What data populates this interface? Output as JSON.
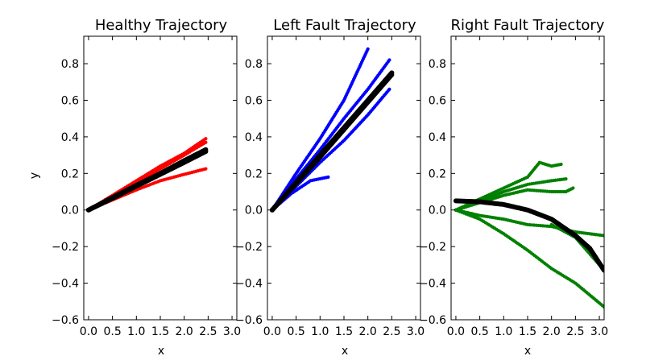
{
  "chart_data": [
    {
      "type": "scatter",
      "title": "Healthy Trajectory",
      "xlabel": "x",
      "ylabel": "y",
      "xlim": [
        -0.1,
        3.1
      ],
      "ylim": [
        -0.6,
        0.95
      ],
      "xticks": [
        "0.0",
        "0.5",
        "1.0",
        "1.5",
        "2.0",
        "2.5",
        "3.0"
      ],
      "yticks": [
        "−0.6",
        "−0.4",
        "−0.2",
        "0.0",
        "0.2",
        "0.4",
        "0.6",
        "0.8"
      ],
      "grid": false,
      "series": [
        {
          "color": "#ff0000",
          "points": [
            [
              0.0,
              0.0
            ],
            [
              0.5,
              0.08
            ],
            [
              1.0,
              0.16
            ],
            [
              1.5,
              0.24
            ],
            [
              2.0,
              0.31
            ],
            [
              2.45,
              0.39
            ]
          ]
        },
        {
          "color": "#ff0000",
          "points": [
            [
              0.0,
              0.0
            ],
            [
              0.5,
              0.075
            ],
            [
              1.0,
              0.15
            ],
            [
              1.5,
              0.225
            ],
            [
              2.0,
              0.3
            ],
            [
              2.45,
              0.37
            ]
          ]
        },
        {
          "color": "#ff0000",
          "points": [
            [
              0.0,
              0.0
            ],
            [
              0.5,
              0.055
            ],
            [
              1.0,
              0.11
            ],
            [
              1.5,
              0.16
            ],
            [
              2.0,
              0.195
            ],
            [
              2.45,
              0.225
            ]
          ]
        },
        {
          "color": "#000000",
          "points": [
            [
              0.0,
              0.0
            ],
            [
              0.5,
              0.068
            ],
            [
              1.0,
              0.135
            ],
            [
              1.5,
              0.2
            ],
            [
              2.0,
              0.27
            ],
            [
              2.45,
              0.33
            ]
          ]
        },
        {
          "color": "#000000",
          "points": [
            [
              0.0,
              0.0
            ],
            [
              0.5,
              0.064
            ],
            [
              1.0,
              0.13
            ],
            [
              1.5,
              0.195
            ],
            [
              2.0,
              0.26
            ],
            [
              2.45,
              0.32
            ]
          ]
        }
      ]
    },
    {
      "type": "scatter",
      "title": "Left Fault Trajectory",
      "xlabel": "x",
      "ylabel": "",
      "xlim": [
        -0.1,
        3.1
      ],
      "ylim": [
        -0.6,
        0.95
      ],
      "xticks": [
        "0.0",
        "0.5",
        "1.0",
        "1.5",
        "2.0",
        "2.5",
        "3.0"
      ],
      "yticks": [
        "−0.6",
        "−0.4",
        "−0.2",
        "0.0",
        "0.2",
        "0.4",
        "0.6",
        "0.8"
      ],
      "grid": false,
      "series": [
        {
          "color": "#0000ff",
          "points": [
            [
              0.0,
              0.0
            ],
            [
              0.5,
              0.2
            ],
            [
              1.0,
              0.39
            ],
            [
              1.5,
              0.6
            ],
            [
              2.0,
              0.88
            ]
          ]
        },
        {
          "color": "#0000ff",
          "points": [
            [
              0.0,
              0.0
            ],
            [
              0.5,
              0.17
            ],
            [
              1.0,
              0.33
            ],
            [
              1.5,
              0.5
            ],
            [
              2.0,
              0.66
            ],
            [
              2.45,
              0.82
            ]
          ]
        },
        {
          "color": "#0000ff",
          "points": [
            [
              0.0,
              0.0
            ],
            [
              0.5,
              0.13
            ],
            [
              1.0,
              0.26
            ],
            [
              1.5,
              0.38
            ],
            [
              2.0,
              0.52
            ],
            [
              2.45,
              0.66
            ]
          ]
        },
        {
          "color": "#0000ff",
          "points": [
            [
              0.0,
              0.0
            ],
            [
              0.4,
              0.09
            ],
            [
              0.8,
              0.16
            ],
            [
              1.17,
              0.18
            ]
          ]
        },
        {
          "color": "#000000",
          "points": [
            [
              0.0,
              0.0
            ],
            [
              0.5,
              0.15
            ],
            [
              1.0,
              0.3
            ],
            [
              1.5,
              0.45
            ],
            [
              2.0,
              0.6
            ],
            [
              2.5,
              0.75
            ]
          ]
        },
        {
          "color": "#000000",
          "points": [
            [
              0.0,
              0.0
            ],
            [
              0.5,
              0.145
            ],
            [
              1.0,
              0.29
            ],
            [
              1.5,
              0.44
            ],
            [
              2.0,
              0.59
            ],
            [
              2.5,
              0.74
            ]
          ]
        }
      ]
    },
    {
      "type": "scatter",
      "title": "Right Fault Trajectory",
      "xlabel": "x",
      "ylabel": "",
      "xlim": [
        -0.1,
        3.1
      ],
      "ylim": [
        -0.6,
        0.95
      ],
      "xticks": [
        "0.0",
        "0.5",
        "1.0",
        "1.5",
        "2.0",
        "2.5",
        "3.0"
      ],
      "yticks": [
        "−0.6",
        "−0.4",
        "−0.2",
        "0.0",
        "0.2",
        "0.4",
        "0.6",
        "0.8"
      ],
      "grid": false,
      "series": [
        {
          "color": "#008000",
          "points": [
            [
              0.0,
              0.0
            ],
            [
              0.5,
              0.06
            ],
            [
              1.0,
              0.12
            ],
            [
              1.5,
              0.18
            ],
            [
              1.75,
              0.26
            ],
            [
              2.0,
              0.24
            ],
            [
              2.2,
              0.25
            ]
          ]
        },
        {
          "color": "#008000",
          "points": [
            [
              0.0,
              0.0
            ],
            [
              0.5,
              0.05
            ],
            [
              1.0,
              0.1
            ],
            [
              1.5,
              0.14
            ],
            [
              2.0,
              0.16
            ],
            [
              2.3,
              0.17
            ]
          ]
        },
        {
          "color": "#008000",
          "points": [
            [
              0.0,
              0.0
            ],
            [
              0.5,
              0.04
            ],
            [
              1.0,
              0.08
            ],
            [
              1.5,
              0.11
            ],
            [
              2.0,
              0.1
            ],
            [
              2.3,
              0.1
            ],
            [
              2.45,
              0.12
            ]
          ]
        },
        {
          "color": "#008000",
          "points": [
            [
              0.0,
              0.0
            ],
            [
              0.5,
              -0.03
            ],
            [
              1.0,
              -0.05
            ],
            [
              1.5,
              -0.08
            ],
            [
              2.0,
              -0.09
            ],
            [
              2.5,
              -0.12
            ],
            [
              3.1,
              -0.14
            ]
          ]
        },
        {
          "color": "#008000",
          "points": [
            [
              0.0,
              0.0
            ],
            [
              0.5,
              -0.05
            ],
            [
              1.0,
              -0.13
            ],
            [
              1.5,
              -0.22
            ],
            [
              2.0,
              -0.32
            ],
            [
              2.5,
              -0.4
            ],
            [
              3.1,
              -0.53
            ]
          ]
        },
        {
          "color": "#008000",
          "points": [
            [
              2.0,
              -0.08
            ],
            [
              2.5,
              -0.15
            ],
            [
              3.1,
              -0.33
            ]
          ]
        },
        {
          "color": "#000000",
          "points": [
            [
              0.0,
              0.05
            ],
            [
              0.5,
              0.045
            ],
            [
              1.0,
              0.03
            ],
            [
              1.5,
              0.0
            ],
            [
              2.0,
              -0.05
            ],
            [
              2.5,
              -0.14
            ],
            [
              2.8,
              -0.21
            ],
            [
              3.1,
              -0.33
            ]
          ]
        }
      ]
    }
  ]
}
